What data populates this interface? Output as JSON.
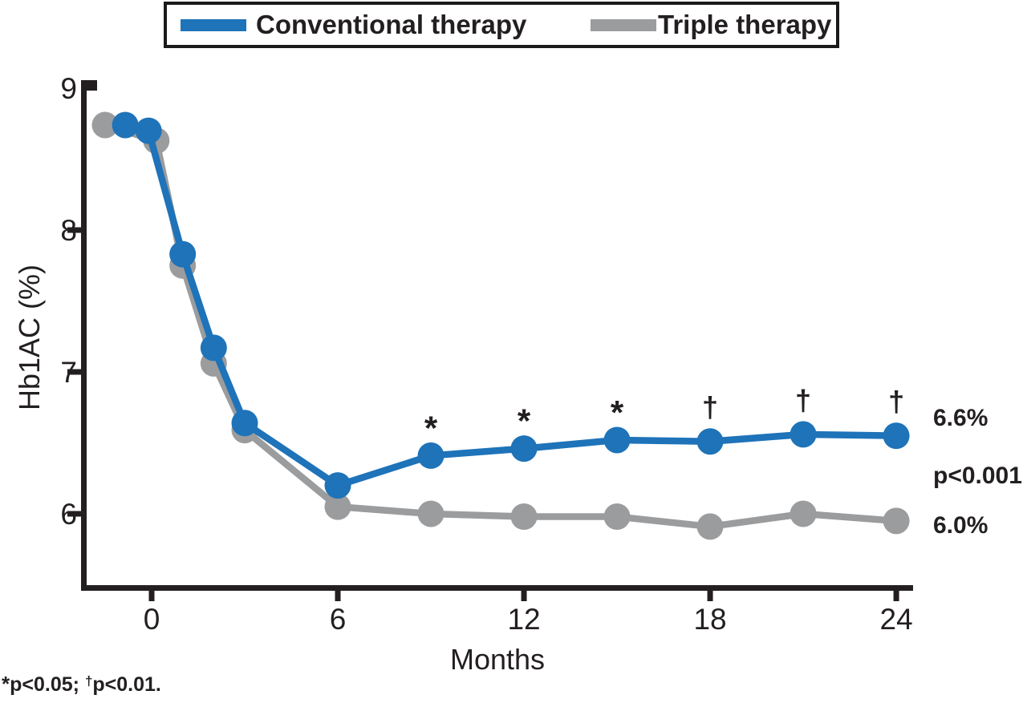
{
  "colors": {
    "conventional": "#1E73B9",
    "triple": "#9B9C9E",
    "text": "#231F20",
    "axis": "#231F20",
    "background": "#FFFFFF"
  },
  "legend": {
    "position": "top",
    "items": [
      {
        "label": "Conventional therapy",
        "color": "#1E73B9"
      },
      {
        "label": "Triple therapy",
        "color": "#9B9C9E"
      }
    ]
  },
  "chart_data": {
    "type": "line",
    "title": "",
    "xlabel": "Months",
    "ylabel": "Hb1AC (%)",
    "x_ticks": [
      0,
      6,
      12,
      18,
      24
    ],
    "y_ticks": [
      6,
      7,
      8,
      9
    ],
    "xlim": [
      -2.3,
      24.5
    ],
    "ylim": [
      5.5,
      9.05
    ],
    "grid": false,
    "series": [
      {
        "name": "Triple therapy",
        "key": "triple",
        "color": "#9B9C9E",
        "x": [
          -1.5,
          0.15,
          1,
          2,
          3,
          6,
          9,
          12,
          15,
          18,
          21,
          24
        ],
        "y": [
          8.74,
          8.63,
          7.75,
          7.06,
          6.59,
          6.05,
          6.0,
          5.98,
          5.98,
          5.91,
          6.0,
          5.95
        ]
      },
      {
        "name": "Conventional therapy",
        "key": "conventional",
        "color": "#1E73B9",
        "x": [
          -0.85,
          -0.1,
          1,
          2,
          3,
          6,
          9,
          12,
          15,
          18,
          21,
          24
        ],
        "y": [
          8.74,
          8.7,
          7.83,
          7.17,
          6.64,
          6.2,
          6.41,
          6.46,
          6.52,
          6.51,
          6.56,
          6.55
        ]
      }
    ],
    "annotations": [
      {
        "month": 9,
        "symbol": "*"
      },
      {
        "month": 12,
        "symbol": "*"
      },
      {
        "month": 15,
        "symbol": "*"
      },
      {
        "month": 18,
        "symbol": "†"
      },
      {
        "month": 21,
        "symbol": "†"
      },
      {
        "month": 24,
        "symbol": "†"
      }
    ]
  },
  "end_labels": {
    "conventional": "6.6%",
    "p_value": "p<0.001",
    "triple": "6.0%"
  },
  "footnote": {
    "star": "*",
    "star_text": "p<0.05; ",
    "dagger": "†",
    "dagger_text": "p<0.01."
  }
}
